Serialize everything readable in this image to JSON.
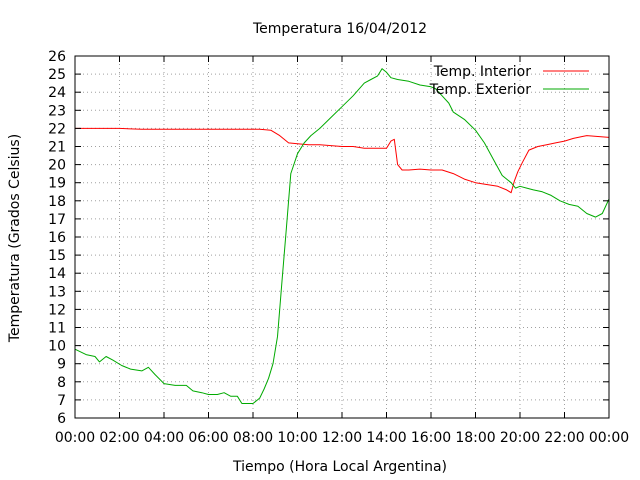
{
  "chart_data": {
    "type": "line",
    "title": "Temperatura 16/04/2012",
    "xlabel": "Tiempo (Hora Local Argentina)",
    "ylabel": "Temperatura (Grados Celsius)",
    "xlim": [
      0,
      24
    ],
    "ylim": [
      6,
      26
    ],
    "x_ticks": [
      "00:00",
      "02:00",
      "04:00",
      "06:00",
      "08:00",
      "10:00",
      "12:00",
      "14:00",
      "16:00",
      "18:00",
      "20:00",
      "22:00",
      "00:00"
    ],
    "y_ticks": [
      6,
      7,
      8,
      9,
      10,
      11,
      12,
      13,
      14,
      15,
      16,
      17,
      18,
      19,
      20,
      21,
      22,
      23,
      24,
      25,
      26
    ],
    "grid": true,
    "legend_position": "top-right",
    "series": [
      {
        "name": "Temp. Interior",
        "color": "#ff0000",
        "x": [
          0,
          1,
          2,
          3,
          4,
          5,
          6,
          7,
          7.5,
          8.3,
          8.8,
          9.2,
          9.6,
          10,
          10.5,
          11,
          11.5,
          12,
          12.5,
          13,
          13.5,
          14,
          14.2,
          14.35,
          14.5,
          14.7,
          15,
          15.5,
          16,
          16.5,
          17,
          17.5,
          18,
          18.5,
          19,
          19.4,
          19.6,
          19.75,
          19.9,
          20.1,
          20.4,
          20.8,
          21.2,
          21.6,
          22,
          22.4,
          22.8,
          23,
          23.5,
          24
        ],
        "y": [
          22,
          22,
          22,
          21.95,
          21.95,
          21.95,
          21.95,
          21.95,
          21.95,
          21.95,
          21.9,
          21.6,
          21.2,
          21.15,
          21.1,
          21.1,
          21.05,
          21,
          21,
          20.9,
          20.9,
          20.9,
          21.3,
          21.4,
          20.0,
          19.7,
          19.7,
          19.75,
          19.7,
          19.7,
          19.5,
          19.2,
          19.0,
          18.9,
          18.8,
          18.6,
          18.45,
          19.1,
          19.6,
          20.1,
          20.8,
          21.0,
          21.1,
          21.2,
          21.3,
          21.45,
          21.55,
          21.6,
          21.55,
          21.5
        ]
      },
      {
        "name": "Temp. Exterior",
        "color": "#00aa00",
        "x": [
          0,
          0.5,
          0.9,
          1.1,
          1.4,
          1.7,
          2.1,
          2.5,
          3,
          3.3,
          3.6,
          4,
          4.5,
          5,
          5.3,
          5.7,
          6,
          6.4,
          6.7,
          7,
          7.3,
          7.5,
          8,
          8.3,
          8.5,
          8.7,
          8.9,
          9.1,
          9.3,
          9.5,
          9.7,
          10,
          10.3,
          10.6,
          11,
          11.5,
          12,
          12.5,
          13,
          13.3,
          13.6,
          13.8,
          14,
          14.2,
          14.5,
          15,
          15.5,
          16,
          16.2,
          16.5,
          16.8,
          17,
          17.5,
          18,
          18.4,
          18.8,
          19.2,
          19.6,
          19.8,
          20,
          20.3,
          20.6,
          21,
          21.4,
          21.8,
          22.2,
          22.6,
          23,
          23.4,
          23.7,
          24
        ],
        "y": [
          9.8,
          9.5,
          9.4,
          9.1,
          9.4,
          9.2,
          8.9,
          8.7,
          8.6,
          8.8,
          8.4,
          7.9,
          7.8,
          7.8,
          7.5,
          7.4,
          7.3,
          7.3,
          7.4,
          7.2,
          7.2,
          6.8,
          6.8,
          7.1,
          7.6,
          8.2,
          9.0,
          10.5,
          13.5,
          16.5,
          19.5,
          20.6,
          21.2,
          21.6,
          22.0,
          22.6,
          23.2,
          23.8,
          24.5,
          24.7,
          24.9,
          25.3,
          25.1,
          24.8,
          24.7,
          24.6,
          24.4,
          24.3,
          24.2,
          23.8,
          23.4,
          22.9,
          22.5,
          21.9,
          21.2,
          20.3,
          19.4,
          19.0,
          18.7,
          18.8,
          18.7,
          18.6,
          18.5,
          18.3,
          18.0,
          17.8,
          17.7,
          17.3,
          17.1,
          17.3,
          18.1
        ]
      }
    ]
  }
}
